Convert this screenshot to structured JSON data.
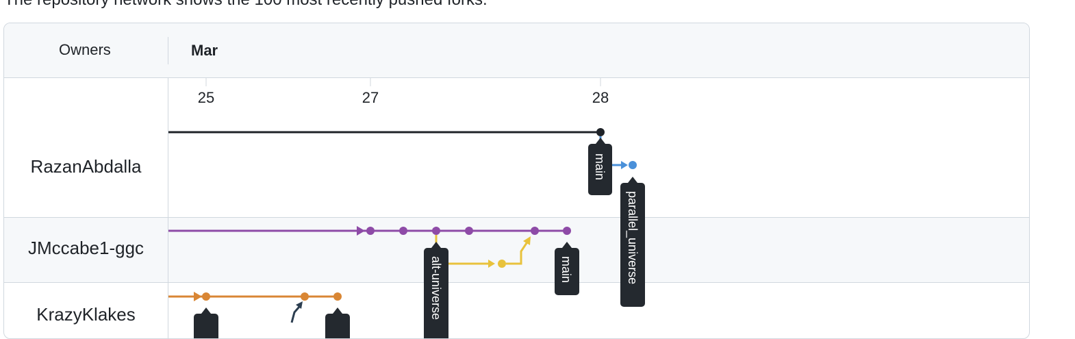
{
  "intro_text": "The repository network shows the 100 most recently pushed forks.",
  "header": {
    "owners_label": "Owners",
    "month_label": "Mar"
  },
  "days": [
    "25",
    "27",
    "28"
  ],
  "owners": [
    {
      "name": "RazanAbdalla"
    },
    {
      "name": "JMccabe1-ggc"
    },
    {
      "name": "KrazyKlakes"
    }
  ],
  "branches": {
    "razan_main": "main",
    "razan_parallel": "parallel_universe",
    "jm_alt": "alt-universe",
    "jm_main": "main"
  },
  "colors": {
    "razan_line": "#1f2328",
    "razan_fork": "#4a90d9",
    "jm_line": "#8e4ba7",
    "jm_fork": "#e8c23c",
    "krazy_line": "#d98634",
    "krazy_merge": "#2c3e50",
    "tag_bg": "#24292f"
  }
}
